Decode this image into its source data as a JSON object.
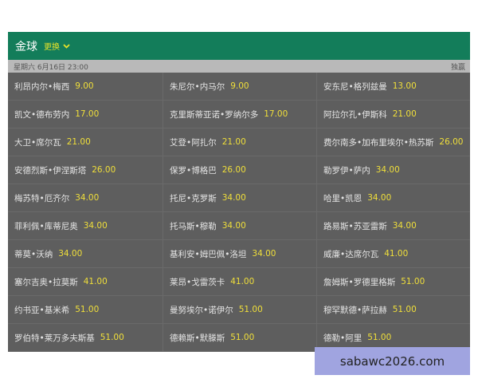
{
  "header": {
    "title": "金球",
    "switch_label": "更换",
    "switch_icon": "chevron-down-icon"
  },
  "datebar": {
    "date": "星期六 6月16日 23:00",
    "market": "独赢"
  },
  "players": [
    {
      "name": "利昂内尔•梅西",
      "odds": "9.00"
    },
    {
      "name": "朱尼尔•内马尔",
      "odds": "9.00"
    },
    {
      "name": "安东尼•格列兹曼",
      "odds": "13.00"
    },
    {
      "name": "凯文•德布劳内",
      "odds": "17.00"
    },
    {
      "name": "克里斯蒂亚诺•罗纳尔多",
      "odds": "17.00"
    },
    {
      "name": "阿拉尔孔•伊斯科",
      "odds": "21.00"
    },
    {
      "name": "大卫•席尔瓦",
      "odds": "21.00"
    },
    {
      "name": "艾登•阿扎尔",
      "odds": "21.00"
    },
    {
      "name": "费尔南多•加布里埃尔•热苏斯",
      "odds": "26.00"
    },
    {
      "name": "安德烈斯•伊涅斯塔",
      "odds": "26.00"
    },
    {
      "name": "保罗•博格巴",
      "odds": "26.00"
    },
    {
      "name": "勒罗伊•萨内",
      "odds": "34.00"
    },
    {
      "name": "梅苏特•厄齐尔",
      "odds": "34.00"
    },
    {
      "name": "托尼•克罗斯",
      "odds": "34.00"
    },
    {
      "name": "哈里•凯恩",
      "odds": "34.00"
    },
    {
      "name": "菲利佩•库蒂尼奥",
      "odds": "34.00"
    },
    {
      "name": "托马斯•穆勒",
      "odds": "34.00"
    },
    {
      "name": "路易斯•苏亚雷斯",
      "odds": "34.00"
    },
    {
      "name": "蒂莫•沃纳",
      "odds": "34.00"
    },
    {
      "name": "基利安•姆巴佩•洛坦",
      "odds": "34.00"
    },
    {
      "name": "威廉•达席尔瓦",
      "odds": "41.00"
    },
    {
      "name": "塞尔吉奥•拉莫斯",
      "odds": "41.00"
    },
    {
      "name": "莱昂•戈雷茨卡",
      "odds": "41.00"
    },
    {
      "name": "詹姆斯•罗德里格斯",
      "odds": "51.00"
    },
    {
      "name": "约书亚•基米希",
      "odds": "51.00"
    },
    {
      "name": "曼努埃尔•诺伊尔",
      "odds": "51.00"
    },
    {
      "name": "穆罕默德•萨拉赫",
      "odds": "51.00"
    },
    {
      "name": "罗伯特•莱万多夫斯基",
      "odds": "51.00"
    },
    {
      "name": "德赖斯•默滕斯",
      "odds": "51.00"
    },
    {
      "name": "德勒•阿里",
      "odds": "51.00"
    }
  ],
  "watermark": "sabawc2026.com"
}
